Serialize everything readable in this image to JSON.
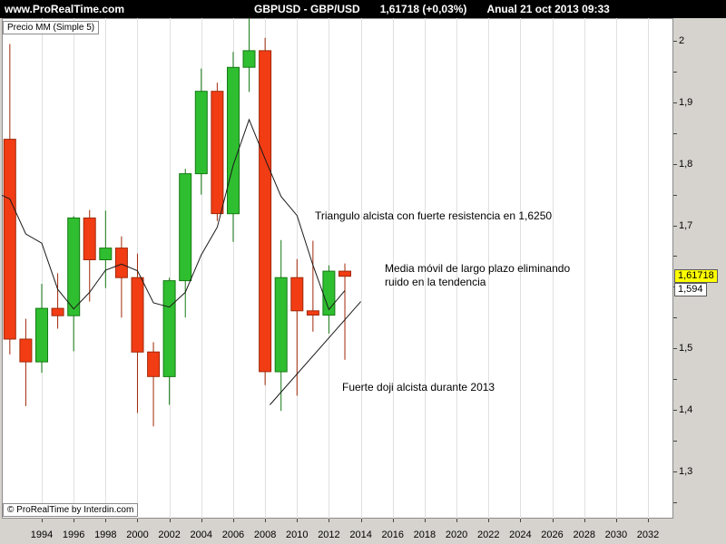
{
  "header": {
    "site": "www.ProRealTime.com",
    "symbol": "GBPUSD - GBP/USD",
    "quote": "1,61718 (+0,03%)",
    "period_date": "Anual  21 oct 2013 09:33"
  },
  "chart": {
    "indicator_label": "Precio MM (Simple 5)",
    "copyright": "© ProRealTime by Interdin.com",
    "last_price_tag": "1,61718",
    "ma_value_tag": "1,594",
    "colors": {
      "up": "#2fbe2f",
      "up_border": "#157a15",
      "down": "#f23c14",
      "down_border": "#a02808",
      "ma_line": "#1a1a1a",
      "grid": "#e0e0e0",
      "last_tag_bg": "#ffff00"
    }
  },
  "chart_data": {
    "type": "candlestick",
    "symbol": "GBPUSD",
    "timeframe": "Anual",
    "last_price": 1.61718,
    "ma_last": 1.5945,
    "y_axis": {
      "min": 1.223,
      "max": 2.037,
      "ticks": [
        {
          "label": "2",
          "value": 2.0
        },
        {
          "label": "1,9",
          "value": 1.9
        },
        {
          "label": "1,8",
          "value": 1.8
        },
        {
          "label": "1,7",
          "value": 1.7
        },
        {
          "label": "1,5",
          "value": 1.5
        },
        {
          "label": "1,4",
          "value": 1.4
        },
        {
          "label": "1,3",
          "value": 1.3
        }
      ]
    },
    "x_axis": {
      "tick_years": [
        1994,
        1996,
        1998,
        2000,
        2002,
        2004,
        2006,
        2008,
        2010,
        2012,
        2014,
        2016,
        2018,
        2020,
        2022,
        2024,
        2026,
        2028,
        2030,
        2032
      ]
    },
    "candles": [
      {
        "year": 1992,
        "open": 1.84,
        "high": 1.995,
        "low": 1.49,
        "close": 1.515
      },
      {
        "year": 1993,
        "open": 1.515,
        "high": 1.548,
        "low": 1.406,
        "close": 1.478
      },
      {
        "year": 1994,
        "open": 1.478,
        "high": 1.605,
        "low": 1.46,
        "close": 1.565
      },
      {
        "year": 1995,
        "open": 1.565,
        "high": 1.622,
        "low": 1.532,
        "close": 1.553
      },
      {
        "year": 1996,
        "open": 1.553,
        "high": 1.715,
        "low": 1.495,
        "close": 1.712
      },
      {
        "year": 1997,
        "open": 1.712,
        "high": 1.725,
        "low": 1.576,
        "close": 1.644
      },
      {
        "year": 1998,
        "open": 1.644,
        "high": 1.724,
        "low": 1.598,
        "close": 1.663
      },
      {
        "year": 1999,
        "open": 1.663,
        "high": 1.682,
        "low": 1.55,
        "close": 1.615
      },
      {
        "year": 2000,
        "open": 1.615,
        "high": 1.654,
        "low": 1.395,
        "close": 1.494
      },
      {
        "year": 2001,
        "open": 1.494,
        "high": 1.51,
        "low": 1.373,
        "close": 1.454
      },
      {
        "year": 2002,
        "open": 1.454,
        "high": 1.615,
        "low": 1.408,
        "close": 1.61
      },
      {
        "year": 2003,
        "open": 1.61,
        "high": 1.792,
        "low": 1.55,
        "close": 1.784
      },
      {
        "year": 2004,
        "open": 1.784,
        "high": 1.955,
        "low": 1.75,
        "close": 1.918
      },
      {
        "year": 2005,
        "open": 1.918,
        "high": 1.932,
        "low": 1.707,
        "close": 1.719
      },
      {
        "year": 2006,
        "open": 1.719,
        "high": 1.982,
        "low": 1.673,
        "close": 1.957
      },
      {
        "year": 2007,
        "open": 1.957,
        "high": 2.116,
        "low": 1.917,
        "close": 1.984
      },
      {
        "year": 2008,
        "open": 1.984,
        "high": 2.005,
        "low": 1.44,
        "close": 1.462
      },
      {
        "year": 2009,
        "open": 1.462,
        "high": 1.676,
        "low": 1.398,
        "close": 1.615
      },
      {
        "year": 2010,
        "open": 1.615,
        "high": 1.645,
        "low": 1.423,
        "close": 1.561
      },
      {
        "year": 2011,
        "open": 1.561,
        "high": 1.675,
        "low": 1.527,
        "close": 1.554
      },
      {
        "year": 2012,
        "open": 1.554,
        "high": 1.635,
        "low": 1.524,
        "close": 1.6255
      },
      {
        "year": 2013,
        "open": 1.6255,
        "high": 1.638,
        "low": 1.4814,
        "close": 1.61718
      }
    ],
    "ma": {
      "name": "MM Simple 5",
      "points": [
        [
          1991.4,
          1.75
        ],
        [
          1992,
          1.743
        ],
        [
          1993,
          1.686
        ],
        [
          1994,
          1.671
        ],
        [
          1995,
          1.596
        ],
        [
          1996,
          1.564
        ],
        [
          1997,
          1.591
        ],
        [
          1998,
          1.627
        ],
        [
          1999,
          1.637
        ],
        [
          2000,
          1.626
        ],
        [
          2001,
          1.574
        ],
        [
          2002,
          1.567
        ],
        [
          2003,
          1.591
        ],
        [
          2004,
          1.652
        ],
        [
          2005,
          1.697
        ],
        [
          2006,
          1.798
        ],
        [
          2007,
          1.872
        ],
        [
          2008,
          1.808
        ],
        [
          2009,
          1.747
        ],
        [
          2010,
          1.716
        ],
        [
          2011,
          1.635
        ],
        [
          2012,
          1.563
        ],
        [
          2013,
          1.594
        ]
      ]
    },
    "trendline": {
      "from": {
        "year": 2008.3,
        "value": 1.408
      },
      "to": {
        "year": 2014.0,
        "value": 1.576
      }
    },
    "annotations": [
      {
        "text": "Triangulo alcista con fuerte resistencia en 1,6250",
        "year": 2011.15,
        "value": 1.715
      },
      {
        "text": "Media móvil de largo plazo eliminando\nruido en la tendencia",
        "year": 2015.5,
        "value": 1.63
      },
      {
        "text": "Fuerte doji alcista durante 2013",
        "year": 2012.8,
        "value": 1.437
      }
    ]
  }
}
